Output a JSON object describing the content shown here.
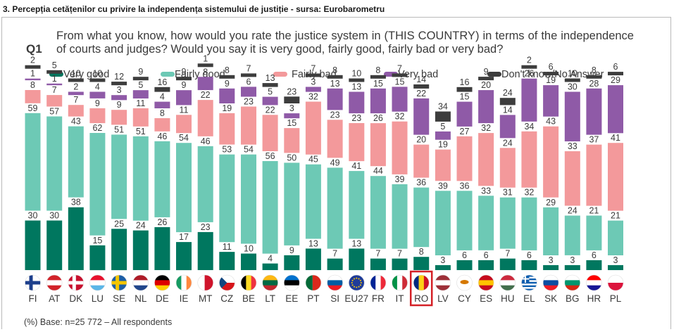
{
  "header": {
    "title": "3. Percepția cetățenilor cu privire la independența sistemului de justiție  - sursa: Eurobarometru"
  },
  "question": {
    "label": "Q1",
    "text": "From what you know, how would you rate the justice system in (THIS COUNTRY) in terms of the independence of courts and judges? Would you say it is very good, fairly good, fairly bad or very bad?"
  },
  "footer": {
    "base_note": "(%) Base: n=25 772 – All respondents"
  },
  "colors": {
    "very_good": "#00775f",
    "fairly_good": "#6dc9b5",
    "fairly_bad": "#f3999b",
    "very_bad": "#8f5aa7",
    "dont_know": "#3d3d3d",
    "highlight": "#d42026"
  },
  "chart_data": {
    "type": "bar",
    "stacked": true,
    "orientation": "vertical",
    "legend_position": "top",
    "categories": [
      "FI",
      "AT",
      "DK",
      "LU",
      "SE",
      "NL",
      "DE",
      "IE",
      "MT",
      "CZ",
      "BE",
      "LT",
      "EE",
      "PT",
      "SI",
      "EU27",
      "FR",
      "IT",
      "RO",
      "LV",
      "CY",
      "ES",
      "HU",
      "EL",
      "SK",
      "BG",
      "HR",
      "PL"
    ],
    "highlighted_category": "RO",
    "series": [
      {
        "name": "Very good",
        "color": "#00775f",
        "values": [
          30,
          30,
          38,
          15,
          25,
          24,
          26,
          17,
          23,
          11,
          10,
          4,
          9,
          13,
          7,
          13,
          7,
          7,
          8,
          3,
          6,
          6,
          7,
          6,
          3,
          3,
          6,
          3
        ]
      },
      {
        "name": "Fairly good",
        "color": "#6dc9b5",
        "values": [
          59,
          57,
          43,
          62,
          51,
          51,
          46,
          54,
          46,
          53,
          54,
          56,
          50,
          45,
          49,
          41,
          44,
          39,
          36,
          39,
          36,
          33,
          31,
          32,
          29,
          24,
          21,
          21
        ]
      },
      {
        "name": "Fairly bad",
        "color": "#f3999b",
        "values": [
          8,
          7,
          7,
          9,
          9,
          11,
          8,
          11,
          22,
          19,
          23,
          22,
          15,
          32,
          23,
          23,
          26,
          32,
          20,
          19,
          27,
          32,
          24,
          34,
          43,
          33,
          37,
          41
        ]
      },
      {
        "name": "Very bad",
        "color": "#8f5aa7",
        "values": [
          1,
          1,
          2,
          4,
          3,
          5,
          4,
          9,
          8,
          9,
          6,
          5,
          3,
          3,
          13,
          13,
          15,
          15,
          22,
          5,
          15,
          20,
          14,
          26,
          19,
          30,
          28,
          29
        ]
      },
      {
        "name": "Don't know/No Answer",
        "color": "#3d3d3d",
        "values": [
          2,
          5,
          10,
          10,
          12,
          9,
          16,
          9,
          1,
          8,
          7,
          13,
          23,
          7,
          8,
          10,
          8,
          7,
          14,
          34,
          16,
          9,
          24,
          2,
          6,
          10,
          8,
          6
        ]
      }
    ],
    "flags": [
      {
        "country": "FI",
        "colors": [
          "#ffffff",
          "#1d3f8c"
        ],
        "pattern": "nordic"
      },
      {
        "country": "AT",
        "colors": [
          "#d2232a",
          "#ffffff",
          "#d2232a"
        ],
        "pattern": "h"
      },
      {
        "country": "DK",
        "colors": [
          "#c8102e",
          "#ffffff"
        ],
        "pattern": "nordic"
      },
      {
        "country": "LU",
        "colors": [
          "#e8112d",
          "#ffffff",
          "#5bb6e7"
        ],
        "pattern": "h"
      },
      {
        "country": "SE",
        "colors": [
          "#1d5fa6",
          "#f4c600"
        ],
        "pattern": "nordic"
      },
      {
        "country": "NL",
        "colors": [
          "#ae1c28",
          "#ffffff",
          "#21468b"
        ],
        "pattern": "h"
      },
      {
        "country": "DE",
        "colors": [
          "#000000",
          "#dd0000",
          "#ffce00"
        ],
        "pattern": "h"
      },
      {
        "country": "IE",
        "colors": [
          "#169b62",
          "#ffffff",
          "#ff883e"
        ],
        "pattern": "v"
      },
      {
        "country": "MT",
        "colors": [
          "#ffffff",
          "#cf142b"
        ],
        "pattern": "v2"
      },
      {
        "country": "CZ",
        "colors": [
          "#ffffff",
          "#d7141a",
          "#11457e"
        ],
        "pattern": "cz"
      },
      {
        "country": "BE",
        "colors": [
          "#000000",
          "#fdda24",
          "#ef3340"
        ],
        "pattern": "v"
      },
      {
        "country": "LT",
        "colors": [
          "#fdb913",
          "#006a44",
          "#c1272d"
        ],
        "pattern": "h"
      },
      {
        "country": "EE",
        "colors": [
          "#0072ce",
          "#000000",
          "#ffffff"
        ],
        "pattern": "h"
      },
      {
        "country": "PT",
        "colors": [
          "#046a38",
          "#da291c"
        ],
        "pattern": "v2"
      },
      {
        "country": "SI",
        "colors": [
          "#ffffff",
          "#005da4",
          "#ed1c24"
        ],
        "pattern": "h"
      },
      {
        "country": "EU27",
        "colors": [
          "#1f3c99",
          "#ffcc00"
        ],
        "pattern": "eu"
      },
      {
        "country": "FR",
        "colors": [
          "#002395",
          "#ffffff",
          "#ed2939"
        ],
        "pattern": "v"
      },
      {
        "country": "IT",
        "colors": [
          "#009246",
          "#ffffff",
          "#ce2b37"
        ],
        "pattern": "v"
      },
      {
        "country": "RO",
        "colors": [
          "#002b7f",
          "#fcd116",
          "#ce1126"
        ],
        "pattern": "v"
      },
      {
        "country": "LV",
        "colors": [
          "#9e3039",
          "#ffffff",
          "#9e3039"
        ],
        "pattern": "h"
      },
      {
        "country": "CY",
        "colors": [
          "#ffffff",
          "#d57800"
        ],
        "pattern": "cy"
      },
      {
        "country": "ES",
        "colors": [
          "#c60b1e",
          "#ffc400",
          "#c60b1e"
        ],
        "pattern": "h"
      },
      {
        "country": "HU",
        "colors": [
          "#cd2a3e",
          "#ffffff",
          "#436f4d"
        ],
        "pattern": "h"
      },
      {
        "country": "EL",
        "colors": [
          "#0d5eaf",
          "#ffffff"
        ],
        "pattern": "el"
      },
      {
        "country": "SK",
        "colors": [
          "#ffffff",
          "#0b4ea2",
          "#ee1c25"
        ],
        "pattern": "h"
      },
      {
        "country": "BG",
        "colors": [
          "#ffffff",
          "#00966e",
          "#d62612"
        ],
        "pattern": "h"
      },
      {
        "country": "HR",
        "colors": [
          "#ff0000",
          "#ffffff",
          "#171796"
        ],
        "pattern": "h"
      },
      {
        "country": "PL",
        "colors": [
          "#ffffff",
          "#dc143c"
        ],
        "pattern": "h"
      }
    ]
  }
}
